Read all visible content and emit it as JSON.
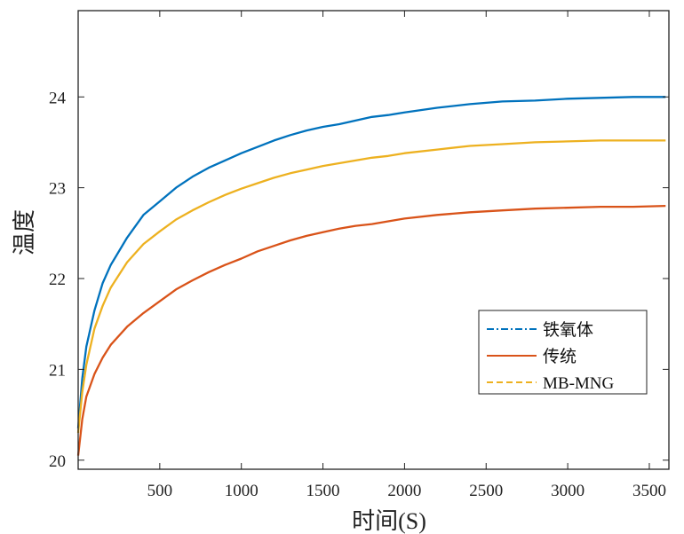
{
  "chart_data": {
    "type": "line",
    "title": "",
    "xlabel": "时间(S)",
    "ylabel": "温度",
    "xlim": [
      0,
      3620
    ],
    "ylim": [
      19.9,
      24.95
    ],
    "x_ticks": [
      500,
      1000,
      1500,
      2000,
      2500,
      3000,
      3500
    ],
    "y_ticks": [
      20,
      21,
      22,
      23,
      24
    ],
    "grid": false,
    "legend_position": "lower-right",
    "series": [
      {
        "name": "铁氧体",
        "color": "#0072BD",
        "line_style": "dash-dot",
        "x": [
          0,
          25,
          50,
          100,
          150,
          200,
          300,
          400,
          500,
          600,
          700,
          800,
          900,
          1000,
          1100,
          1200,
          1300,
          1400,
          1500,
          1600,
          1700,
          1800,
          1900,
          2000,
          2200,
          2400,
          2600,
          2800,
          3000,
          3200,
          3400,
          3600
        ],
        "y": [
          20.35,
          20.9,
          21.25,
          21.65,
          21.95,
          22.15,
          22.45,
          22.7,
          22.85,
          23.0,
          23.12,
          23.22,
          23.3,
          23.38,
          23.45,
          23.52,
          23.58,
          23.63,
          23.67,
          23.7,
          23.74,
          23.78,
          23.8,
          23.83,
          23.88,
          23.92,
          23.95,
          23.96,
          23.98,
          23.99,
          24.0,
          24.0
        ]
      },
      {
        "name": "传统",
        "color": "#D95319",
        "line_style": "solid",
        "x": [
          0,
          25,
          50,
          100,
          150,
          200,
          300,
          400,
          500,
          600,
          700,
          800,
          900,
          1000,
          1100,
          1200,
          1300,
          1400,
          1500,
          1600,
          1700,
          1800,
          1900,
          2000,
          2200,
          2400,
          2600,
          2800,
          3000,
          3200,
          3400,
          3600
        ],
        "y": [
          20.05,
          20.45,
          20.7,
          20.95,
          21.13,
          21.27,
          21.47,
          21.62,
          21.75,
          21.88,
          21.98,
          22.07,
          22.15,
          22.22,
          22.3,
          22.36,
          22.42,
          22.47,
          22.51,
          22.55,
          22.58,
          22.6,
          22.63,
          22.66,
          22.7,
          22.73,
          22.75,
          22.77,
          22.78,
          22.79,
          22.79,
          22.8
        ]
      },
      {
        "name": "MB-MNG",
        "color": "#EDB120",
        "line_style": "dashed",
        "x": [
          0,
          25,
          50,
          100,
          150,
          200,
          300,
          400,
          500,
          600,
          700,
          800,
          900,
          1000,
          1100,
          1200,
          1300,
          1400,
          1500,
          1600,
          1700,
          1800,
          1900,
          2000,
          2200,
          2400,
          2600,
          2800,
          3000,
          3200,
          3400,
          3600
        ],
        "y": [
          20.3,
          20.75,
          21.05,
          21.45,
          21.7,
          21.9,
          22.18,
          22.38,
          22.52,
          22.65,
          22.75,
          22.84,
          22.92,
          22.99,
          23.05,
          23.11,
          23.16,
          23.2,
          23.24,
          23.27,
          23.3,
          23.33,
          23.35,
          23.38,
          23.42,
          23.46,
          23.48,
          23.5,
          23.51,
          23.52,
          23.52,
          23.52
        ]
      }
    ]
  }
}
